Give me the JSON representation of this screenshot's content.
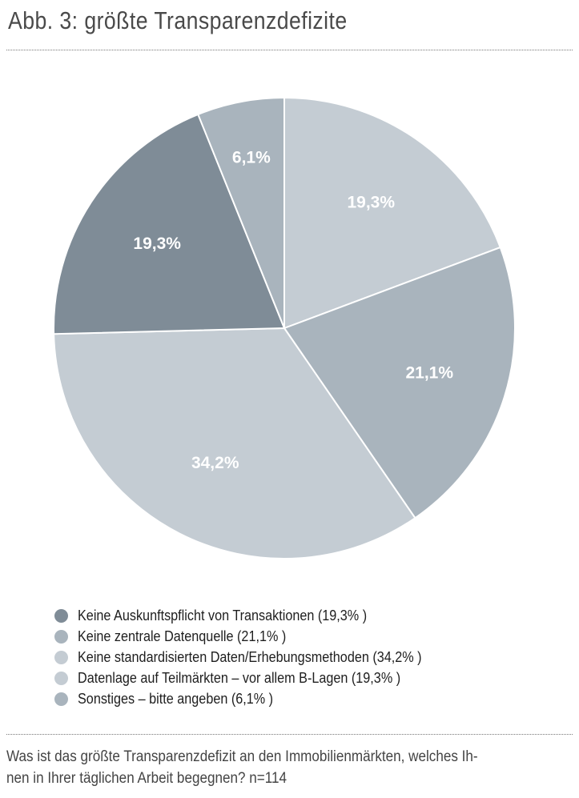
{
  "header": {
    "title": "Abb. 3: größte Transparenzdefizite"
  },
  "chart_data": {
    "type": "pie",
    "title": "Abb. 3: größte Transparenzdefizite",
    "unit": "%",
    "slices": [
      {
        "label": "Datenlage auf Teilmärkten – vor allem B-Lagen",
        "legend": "Datenlage auf Teilmärkten – vor allem B-Lagen (19,3% )",
        "value": 19.3,
        "display": "19,3%",
        "color": "#c4ccd3"
      },
      {
        "label": "Keine zentrale Datenquelle",
        "legend": "Keine zentrale Datenquelle (21,1% )",
        "value": 21.1,
        "display": "21,1%",
        "color": "#a9b4bd"
      },
      {
        "label": "Keine standardisierten Daten/Erhebungsmethoden",
        "legend": "Keine standardisierten Daten/Erhebungsmethoden (34,2% )",
        "value": 34.2,
        "display": "34,2%",
        "color": "#c4ccd3"
      },
      {
        "label": "Keine Auskunftspflicht von Transaktionen",
        "legend": "Keine Auskunftspflicht von Transaktionen (19,3% )",
        "value": 19.3,
        "display": "19,3%",
        "color": "#7f8c97"
      },
      {
        "label": "Sonstiges – bitte angeben",
        "legend": "Sonstiges – bitte angeben (6,1% )",
        "value": 6.1,
        "display": "6,1%",
        "color": "#a9b4bd"
      }
    ],
    "legend_order": [
      3,
      1,
      2,
      0,
      4
    ],
    "start_angle": "12 o'clock",
    "direction": "clockwise",
    "legend_position": "bottom-left"
  },
  "footnote": {
    "line1": "Was ist das größte Transparenzdefizit an den Immobilienmärkten, welches Ih-",
    "line2": "nen in Ihrer täglichen Arbeit begegnen? n=114"
  }
}
